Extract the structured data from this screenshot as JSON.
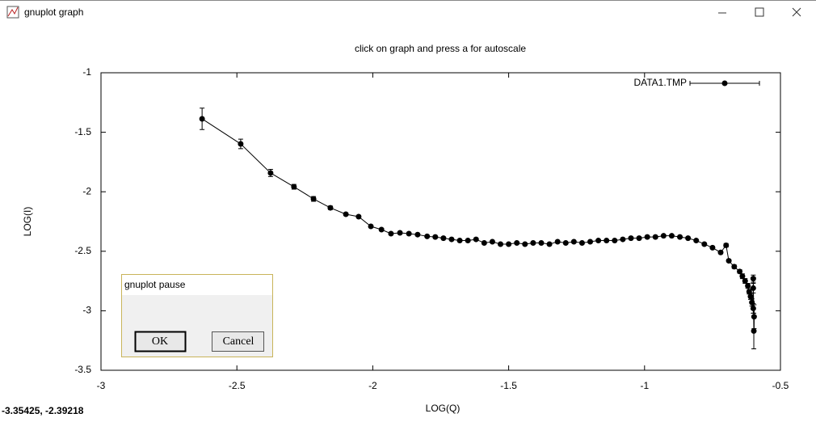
{
  "window": {
    "title": "gnuplot graph",
    "status": "-3.35425, -2.39218"
  },
  "dialog": {
    "title": "gnuplot pause",
    "ok": "OK",
    "cancel": "Cancel"
  },
  "chart_data": {
    "type": "line",
    "title": "click on graph and press a for autoscale",
    "x_label": "LOG(Q)",
    "y_label": "LOG(I)",
    "xlim": [
      -3,
      -0.5
    ],
    "xticks": [
      -3,
      -2.5,
      -2,
      -1.5,
      -1,
      -0.5
    ],
    "ylim": [
      -3.5,
      -1
    ],
    "yticks": [
      -1,
      -1.5,
      -2,
      -2.5,
      -3,
      -3.5
    ],
    "grid": false,
    "legend": "top-right",
    "x": [
      -2.628,
      -2.486,
      -2.376,
      -2.29,
      -2.218,
      -2.156,
      -2.099,
      -2.052,
      -2.007,
      -1.968,
      -1.933,
      -1.9,
      -1.867,
      -1.835,
      -1.8,
      -1.77,
      -1.74,
      -1.71,
      -1.68,
      -1.65,
      -1.62,
      -1.59,
      -1.56,
      -1.53,
      -1.5,
      -1.47,
      -1.44,
      -1.41,
      -1.38,
      -1.35,
      -1.32,
      -1.29,
      -1.26,
      -1.23,
      -1.2,
      -1.17,
      -1.14,
      -1.11,
      -1.08,
      -1.05,
      -1.02,
      -0.99,
      -0.96,
      -0.93,
      -0.9,
      -0.87,
      -0.84,
      -0.81,
      -0.78,
      -0.75,
      -0.72,
      -0.7,
      -0.69,
      -0.67,
      -0.65,
      -0.64,
      -0.63,
      -0.62,
      -0.615,
      -0.61,
      -0.605,
      -0.6,
      -0.6,
      -0.598,
      -0.597,
      -0.6
    ],
    "series": [
      {
        "name": "DATA1.TMP",
        "color": "#000000",
        "values": [
          -1.387,
          -1.598,
          -1.842,
          -1.958,
          -2.06,
          -2.135,
          -2.189,
          -2.209,
          -2.291,
          -2.318,
          -2.352,
          -2.345,
          -2.352,
          -2.36,
          -2.375,
          -2.38,
          -2.39,
          -2.4,
          -2.41,
          -2.41,
          -2.4,
          -2.43,
          -2.42,
          -2.44,
          -2.44,
          -2.43,
          -2.44,
          -2.43,
          -2.43,
          -2.44,
          -2.42,
          -2.43,
          -2.42,
          -2.43,
          -2.42,
          -2.41,
          -2.41,
          -2.41,
          -2.4,
          -2.39,
          -2.39,
          -2.38,
          -2.38,
          -2.37,
          -2.37,
          -2.38,
          -2.39,
          -2.41,
          -2.44,
          -2.47,
          -2.51,
          -2.45,
          -2.58,
          -2.63,
          -2.67,
          -2.71,
          -2.75,
          -2.79,
          -2.84,
          -2.88,
          -2.93,
          -2.98,
          -2.73,
          -3.17,
          -3.05,
          -2.81
        ],
        "errors": [
          0.09,
          0.04,
          0.03,
          0.02,
          0.02,
          0.015,
          0.01,
          0.01,
          0.01,
          0.01,
          0.01,
          0.01,
          0.01,
          0.008,
          0.008,
          0.008,
          0.008,
          0.008,
          0.008,
          0.008,
          0.008,
          0.008,
          0.008,
          0.008,
          0.008,
          0.008,
          0.008,
          0.008,
          0.008,
          0.008,
          0.008,
          0.008,
          0.008,
          0.008,
          0.008,
          0.008,
          0.008,
          0.008,
          0.008,
          0.008,
          0.008,
          0.008,
          0.008,
          0.008,
          0.008,
          0.008,
          0.008,
          0.008,
          0.01,
          0.01,
          0.01,
          0.015,
          0.01,
          0.015,
          0.015,
          0.02,
          0.02,
          0.02,
          0.02,
          0.025,
          0.03,
          0.04,
          0.03,
          0.15,
          0.1,
          0.04
        ]
      }
    ]
  }
}
